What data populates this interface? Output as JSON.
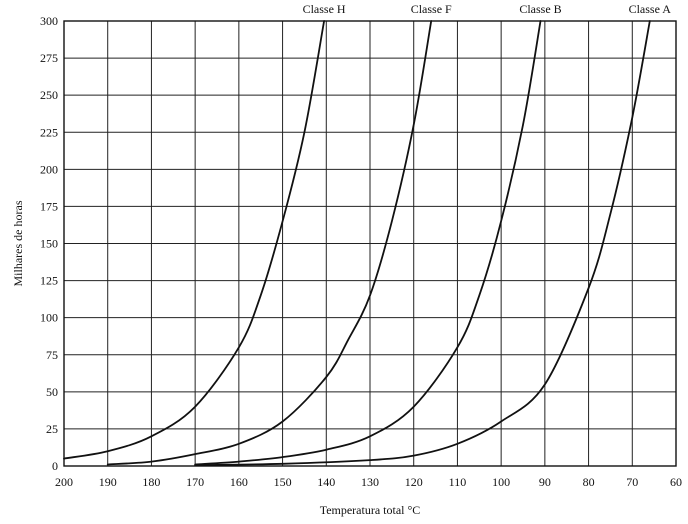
{
  "chart_data": {
    "type": "line",
    "title": "",
    "xlabel": "Temperatura total °C",
    "ylabel": "Milhares de horas",
    "xlim": [
      200,
      60
    ],
    "ylim": [
      0,
      300
    ],
    "x_reversed": true,
    "xticks": [
      200,
      190,
      180,
      170,
      160,
      150,
      140,
      130,
      120,
      110,
      100,
      90,
      80,
      70,
      60
    ],
    "yticks": [
      0,
      25,
      50,
      75,
      100,
      125,
      150,
      175,
      200,
      225,
      250,
      275,
      300
    ],
    "grid": true,
    "legend": "curve labels above plot",
    "series": [
      {
        "name": "Classe H",
        "points": [
          [
            200,
            5
          ],
          [
            190,
            10
          ],
          [
            180,
            20
          ],
          [
            170,
            40
          ],
          [
            160,
            80
          ],
          [
            155,
            115
          ],
          [
            150,
            165
          ],
          [
            145,
            225
          ],
          [
            140.5,
            300
          ]
        ]
      },
      {
        "name": "Classe F",
        "points": [
          [
            190,
            1
          ],
          [
            180,
            3
          ],
          [
            170,
            8
          ],
          [
            160,
            15
          ],
          [
            150,
            30
          ],
          [
            140,
            60
          ],
          [
            135,
            85
          ],
          [
            130,
            115
          ],
          [
            125,
            165
          ],
          [
            120,
            230
          ],
          [
            116,
            300
          ]
        ]
      },
      {
        "name": "Classe B",
        "points": [
          [
            170,
            1
          ],
          [
            160,
            3
          ],
          [
            150,
            6
          ],
          [
            140,
            11
          ],
          [
            130,
            20
          ],
          [
            120,
            40
          ],
          [
            110,
            80
          ],
          [
            105,
            115
          ],
          [
            100,
            165
          ],
          [
            95,
            230
          ],
          [
            91,
            300
          ]
        ]
      },
      {
        "name": "Classe A",
        "points": [
          [
            170,
            0.5
          ],
          [
            150,
            1.5
          ],
          [
            130,
            4
          ],
          [
            120,
            7
          ],
          [
            110,
            15
          ],
          [
            100,
            30
          ],
          [
            90,
            55
          ],
          [
            80,
            120
          ],
          [
            75,
            170
          ],
          [
            70,
            235
          ],
          [
            66,
            300
          ]
        ]
      }
    ]
  }
}
